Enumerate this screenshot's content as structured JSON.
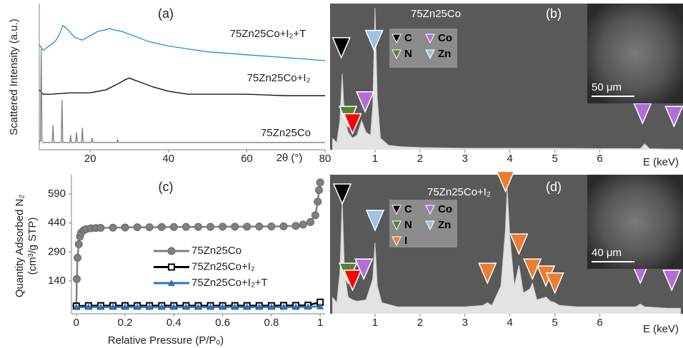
{
  "chart_data": [
    {
      "type": "line",
      "title": "(a)",
      "xlabel": "2θ (°)",
      "ylabel": "Scattered Intensity (a.u.)",
      "xlim": [
        7,
        80
      ],
      "xticks": [
        20,
        40,
        60,
        80
      ],
      "ylim": [
        0,
        100
      ],
      "series": [
        {
          "name": "75Zn25Co+I₂+T",
          "color": "#1f8dd6",
          "x": [
            7,
            8,
            9,
            10,
            11,
            12,
            13,
            14,
            15,
            16,
            18,
            20,
            22,
            24,
            25,
            26,
            28,
            30,
            32,
            35,
            40,
            45,
            50,
            55,
            60,
            65,
            70,
            75,
            80
          ],
          "values": [
            72,
            68,
            70,
            72,
            74,
            78,
            85,
            83,
            80,
            77,
            75,
            78,
            81,
            82,
            83,
            82,
            81,
            79,
            77,
            74,
            71,
            69,
            67,
            66,
            65,
            64,
            63,
            62,
            61
          ]
        },
        {
          "name": "75Zn25Co+I₂",
          "color": "#000000",
          "x": [
            7,
            8,
            10,
            15,
            20,
            24,
            27,
            29,
            30,
            31,
            33,
            36,
            40,
            45,
            50,
            60,
            70,
            80
          ],
          "values": [
            41,
            38,
            38,
            39,
            39,
            41,
            45,
            48,
            49,
            48,
            46,
            43,
            40,
            38,
            38,
            38,
            37,
            37
          ]
        },
        {
          "name": "75Zn25Co",
          "color": "#7f7f7f",
          "x": [
            7,
            7.3,
            7.5,
            7.7,
            8,
            10.3,
            10.5,
            10.7,
            12.6,
            12.8,
            13,
            14.8,
            15,
            15.2,
            16.3,
            16.5,
            16.7,
            17.8,
            18,
            18.2,
            20.3,
            20.5,
            20.7,
            26.8,
            27,
            27.2,
            30,
            40,
            50,
            60,
            70,
            80
          ],
          "values": [
            5,
            6,
            69,
            6,
            5,
            5,
            17,
            5,
            5,
            34,
            5,
            5,
            10,
            5,
            5,
            12,
            5,
            5,
            15,
            5,
            5,
            8,
            5,
            5,
            7,
            5,
            5,
            5,
            5,
            5,
            5,
            5
          ]
        }
      ]
    },
    {
      "type": "area",
      "title": "(b)",
      "subtitle": "75Zn25Co",
      "xlabel": "E (keV)",
      "xlim": [
        0,
        7.85
      ],
      "xticks": [
        1,
        2,
        3,
        4,
        5,
        6
      ],
      "ylim": [
        0,
        100
      ],
      "background": "#595959",
      "color": "#f2f2f2",
      "scale_bar": "50 μm",
      "x": [
        0.05,
        0.15,
        0.22,
        0.27,
        0.32,
        0.4,
        0.5,
        0.6,
        0.7,
        0.8,
        0.9,
        0.95,
        1.0,
        1.05,
        1.12,
        1.3,
        1.6,
        2,
        3,
        4,
        5,
        6,
        6.9,
        7.0,
        7.1,
        7.5,
        7.8
      ],
      "values": [
        8,
        5,
        20,
        52,
        22,
        12,
        8,
        10,
        20,
        12,
        10,
        30,
        97,
        35,
        8,
        3,
        2,
        1.5,
        1,
        1,
        1,
        0.8,
        0.8,
        4,
        0.8,
        0.5,
        0.5
      ],
      "legend": [
        {
          "name": "C",
          "color": "#000000"
        },
        {
          "name": "Co",
          "color": "#b36fd9"
        },
        {
          "name": "N",
          "color": "#548235"
        },
        {
          "name": "Zn",
          "color": "#9dc3e6"
        }
      ],
      "markers": [
        {
          "x": 0.25,
          "y": 63,
          "color": "#000000"
        },
        {
          "x": 0.4,
          "y": 16,
          "color": "#548235"
        },
        {
          "x": 0.5,
          "y": 11,
          "color": "#ff0000"
        },
        {
          "x": 0.78,
          "y": 26,
          "color": "#b36fd9"
        },
        {
          "x": 0.98,
          "y": 68,
          "color": "#9dc3e6"
        },
        {
          "x": 6.95,
          "y": 18,
          "color": "#b36fd9"
        },
        {
          "x": 7.65,
          "y": 16,
          "color": "#b36fd9"
        }
      ]
    },
    {
      "type": "line",
      "title": "(c)",
      "xlabel": "Relative Pressure (P/Pₒ)",
      "ylabel": [
        "Quantity Adsorbed N₂",
        "(cm³/g STP)"
      ],
      "xlim": [
        -0.02,
        1.02
      ],
      "xticks": [
        0,
        0.2,
        0.4,
        0.6,
        0.8,
        1
      ],
      "ylim": [
        -30,
        690
      ],
      "yticks": [
        140,
        290,
        440,
        590
      ],
      "series": [
        {
          "name": "75Zn25Co",
          "color": "#808080",
          "marker": "circle",
          "x": [
            0,
            0.002,
            0.005,
            0.01,
            0.015,
            0.02,
            0.03,
            0.04,
            0.06,
            0.08,
            0.1,
            0.15,
            0.2,
            0.25,
            0.3,
            0.35,
            0.4,
            0.45,
            0.5,
            0.55,
            0.6,
            0.65,
            0.7,
            0.75,
            0.8,
            0.85,
            0.9,
            0.93,
            0.96,
            0.98,
            0.99,
            0.995,
            1.0
          ],
          "values": [
            10,
            150,
            260,
            330,
            370,
            390,
            402,
            408,
            412,
            414,
            415,
            416,
            417,
            418,
            418,
            419,
            419,
            420,
            420,
            420,
            421,
            421,
            421,
            422,
            422,
            423,
            425,
            432,
            445,
            480,
            550,
            610,
            650
          ]
        },
        {
          "name": "75Zn25Co+I₂",
          "color": "#000000",
          "marker": "square",
          "x": [
            0,
            0.05,
            0.1,
            0.15,
            0.2,
            0.25,
            0.3,
            0.35,
            0.4,
            0.45,
            0.5,
            0.55,
            0.6,
            0.65,
            0.7,
            0.75,
            0.8,
            0.85,
            0.9,
            0.95,
            1.0
          ],
          "values": [
            10,
            12,
            12,
            12,
            12,
            12,
            12,
            12,
            12,
            12,
            12,
            12,
            12,
            12,
            12,
            12,
            12,
            13,
            13,
            14,
            30
          ]
        },
        {
          "name": "75Zn25Co+I₂+T",
          "color": "#2e75b6",
          "marker": "triangle",
          "x": [
            0,
            0.05,
            0.1,
            0.15,
            0.2,
            0.25,
            0.3,
            0.35,
            0.4,
            0.45,
            0.5,
            0.55,
            0.6,
            0.65,
            0.7,
            0.75,
            0.8,
            0.85,
            0.9,
            0.95,
            1.0
          ],
          "values": [
            4,
            5,
            5,
            5,
            5,
            5,
            5,
            5,
            5,
            5,
            5,
            5,
            5,
            5,
            5,
            5,
            5,
            5,
            5,
            6,
            8
          ]
        }
      ]
    },
    {
      "type": "area",
      "title": "(d)",
      "subtitle": "75Zn25Co+I₂",
      "xlabel": "E (keV)",
      "xlim": [
        0,
        7.85
      ],
      "xticks": [
        1,
        2,
        3,
        4,
        5,
        6
      ],
      "ylim": [
        0,
        100
      ],
      "background": "#595959",
      "color": "#f2f2f2",
      "scale_bar": "40 μm",
      "x": [
        0.05,
        0.15,
        0.22,
        0.27,
        0.32,
        0.4,
        0.5,
        0.6,
        0.8,
        0.95,
        1.0,
        1.05,
        1.15,
        1.5,
        2,
        3,
        3.4,
        3.5,
        3.6,
        3.8,
        3.9,
        3.94,
        4.0,
        4.1,
        4.2,
        4.3,
        4.45,
        4.5,
        4.6,
        4.8,
        4.9,
        5.0,
        5.1,
        5.5,
        6,
        6.8,
        6.9,
        7.0,
        7.5,
        7.8
      ],
      "values": [
        12,
        8,
        30,
        82,
        30,
        12,
        10,
        9,
        10,
        25,
        51,
        20,
        8,
        5,
        5,
        5,
        6,
        8,
        6,
        20,
        60,
        90,
        55,
        20,
        35,
        15,
        18,
        22,
        10,
        12,
        9,
        8,
        6,
        5,
        5,
        5,
        7,
        5,
        4,
        4
      ],
      "legend": [
        {
          "name": "C",
          "color": "#000000"
        },
        {
          "name": "Co",
          "color": "#b36fd9"
        },
        {
          "name": "N",
          "color": "#548235"
        },
        {
          "name": "Zn",
          "color": "#9dc3e6"
        },
        {
          "name": "I",
          "color": "#ed7d31"
        }
      ],
      "markers": [
        {
          "x": 0.27,
          "y": 79,
          "color": "#000000"
        },
        {
          "x": 0.4,
          "y": 22,
          "color": "#548235"
        },
        {
          "x": 0.5,
          "y": 17,
          "color": "#ff0000"
        },
        {
          "x": 0.75,
          "y": 25,
          "color": "#b36fd9"
        },
        {
          "x": 1.0,
          "y": 60,
          "color": "#9dc3e6"
        },
        {
          "x": 3.5,
          "y": 22,
          "color": "#ed7d31"
        },
        {
          "x": 3.9,
          "y": 88,
          "color": "#ed7d31"
        },
        {
          "x": 4.2,
          "y": 43,
          "color": "#ed7d31"
        },
        {
          "x": 4.5,
          "y": 25,
          "color": "#ed7d31"
        },
        {
          "x": 4.8,
          "y": 20,
          "color": "#ed7d31"
        },
        {
          "x": 5.0,
          "y": 15,
          "color": "#ed7d31"
        },
        {
          "x": 6.9,
          "y": 22,
          "color": "#b36fd9"
        },
        {
          "x": 7.6,
          "y": 17,
          "color": "#b36fd9"
        }
      ]
    }
  ]
}
